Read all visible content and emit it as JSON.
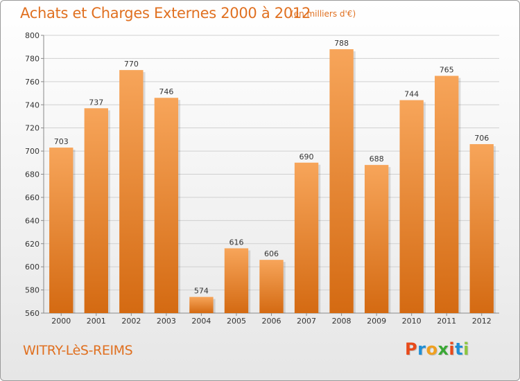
{
  "header": {
    "title": "Achats et Charges Externes 2000 à 2012",
    "unit": "(en milliers d'€)"
  },
  "footer": {
    "commune": "WITRY-LèS-REIMS",
    "logo": "Proxiti"
  },
  "colors": {
    "text_accent": "#e07020",
    "bar_top": "#f7a55a",
    "bar_bottom": "#d46a12",
    "grid": "#d0d0d0",
    "logo_letters": [
      "#e84a1a",
      "#1f8fd6",
      "#f0a020",
      "#3aa835",
      "#e84a1a",
      "#1f8fd6",
      "#8cc63f"
    ]
  },
  "chart_data": {
    "type": "bar",
    "title": "Achats et Charges Externes 2000 à 2012",
    "subtitle": "(en milliers d'€)",
    "xlabel": "",
    "ylabel": "",
    "categories": [
      "2000",
      "2001",
      "2002",
      "2003",
      "2004",
      "2005",
      "2006",
      "2007",
      "2008",
      "2009",
      "2010",
      "2011",
      "2012"
    ],
    "values": [
      703,
      737,
      770,
      746,
      574,
      616,
      606,
      690,
      788,
      688,
      744,
      765,
      706
    ],
    "data_labels": [
      "703",
      "737",
      "770",
      "746",
      "574",
      "616",
      "606",
      "690",
      "788",
      "688",
      "744",
      "765",
      "706"
    ],
    "ylim": [
      560,
      800
    ],
    "yticks": [
      560,
      580,
      600,
      620,
      640,
      660,
      680,
      700,
      720,
      740,
      760,
      780,
      800
    ],
    "ytick_labels": [
      "560",
      "580",
      "600",
      "620",
      "640",
      "660",
      "680",
      "700",
      "720",
      "740",
      "760",
      "780",
      "800"
    ],
    "grid": true,
    "legend": "none"
  }
}
